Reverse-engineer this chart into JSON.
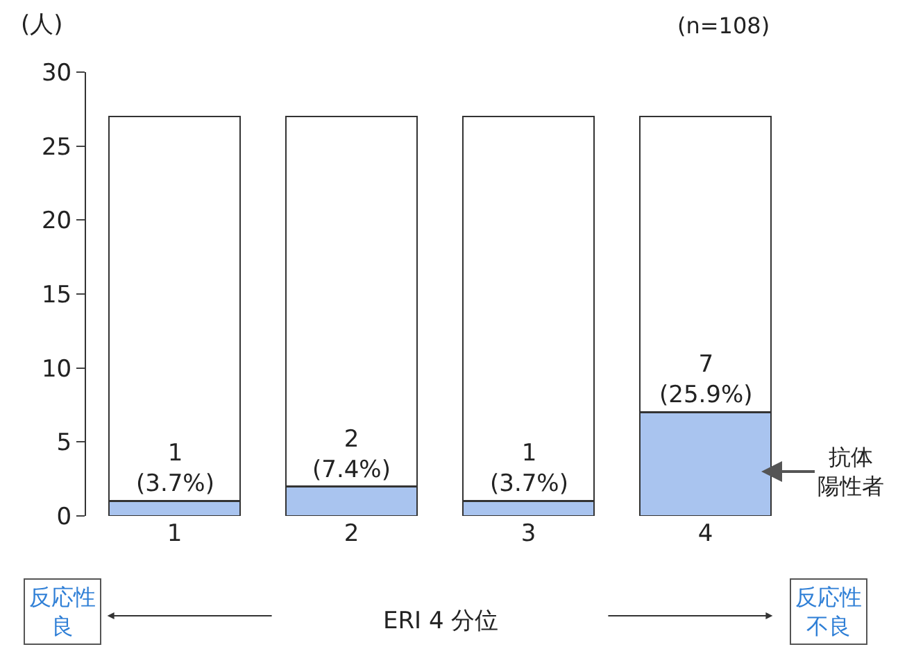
{
  "chart_data": {
    "type": "bar",
    "stacked": true,
    "ylabel": "(人)",
    "xlabel": "ERI 4 分位",
    "categories": [
      "1",
      "2",
      "3",
      "4"
    ],
    "series": [
      {
        "color": "#a9c4ef",
        "values": [
          1,
          2,
          1,
          7
        ],
        "value_labels": [
          "1\n(3.7%)",
          "2\n(7.4%)",
          "1\n(3.7%)",
          "7\n(25.9%)"
        ]
      },
      {
        "color": "#ffffff",
        "values": [
          26,
          25,
          26,
          20
        ]
      }
    ],
    "ylim": [
      0,
      30
    ],
    "yticks": [
      0,
      5,
      10,
      15,
      20,
      25,
      30
    ],
    "annotations": [
      "(n=108)",
      "反応性良",
      "反応性不良",
      "抗体陽性者"
    ]
  }
}
